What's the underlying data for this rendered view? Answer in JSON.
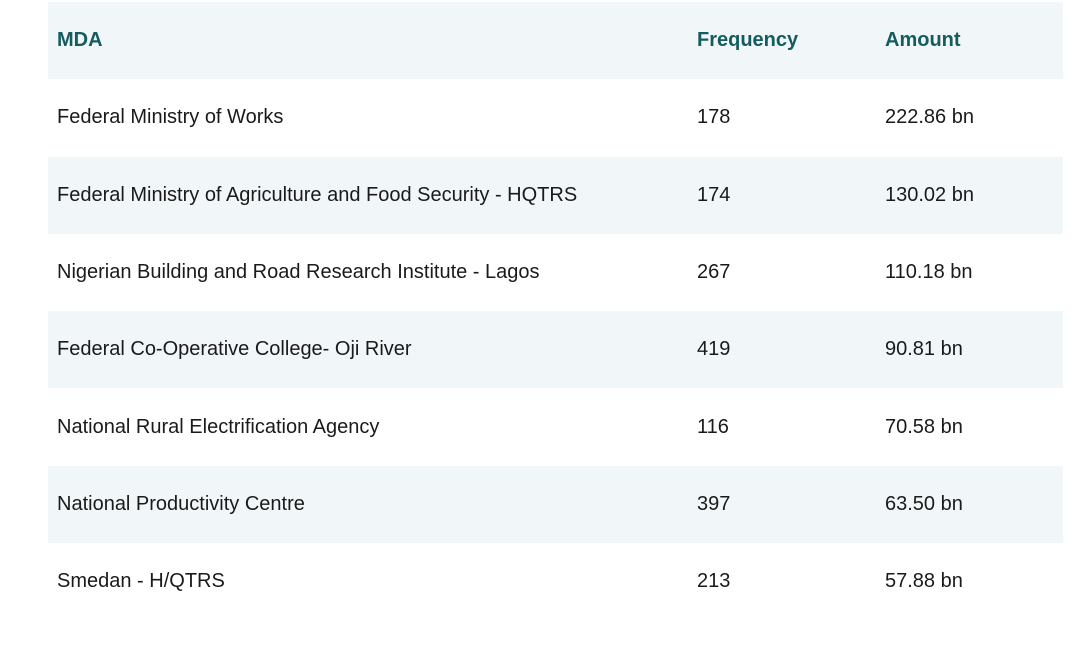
{
  "table": {
    "headers": {
      "mda": "MDA",
      "frequency": "Frequency",
      "amount": "Amount"
    },
    "rows": [
      {
        "mda": "Federal Ministry of Works",
        "frequency": "178",
        "amount": "222.86 bn"
      },
      {
        "mda": "Federal Ministry of Agriculture and Food Security - HQTRS",
        "frequency": "174",
        "amount": "130.02 bn"
      },
      {
        "mda": "Nigerian Building and Road Research Institute - Lagos",
        "frequency": "267",
        "amount": "110.18 bn"
      },
      {
        "mda": "Federal Co-Operative College- Oji River",
        "frequency": "419",
        "amount": "90.81 bn"
      },
      {
        "mda": "National Rural Electrification Agency",
        "frequency": "116",
        "amount": "70.58 bn"
      },
      {
        "mda": "National Productivity Centre",
        "frequency": "397",
        "amount": "63.50 bn"
      },
      {
        "mda": "Smedan - H/QTRS",
        "frequency": "213",
        "amount": "57.88 bn"
      }
    ]
  },
  "colors": {
    "header_text": "#145c5e",
    "shaded_row": "#f1f6f8"
  }
}
